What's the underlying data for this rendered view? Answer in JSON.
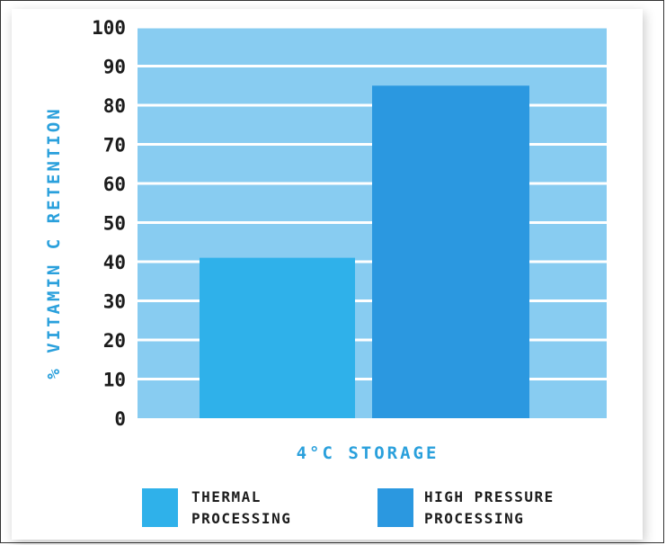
{
  "chart_data": {
    "type": "bar",
    "categories": [
      "4°C STORAGE"
    ],
    "series": [
      {
        "name": "THERMAL PROCESSING",
        "values": [
          41
        ],
        "color": "#2fb1ea"
      },
      {
        "name": "HIGH PRESSURE PROCESSING",
        "values": [
          85
        ],
        "color": "#2b98e0"
      }
    ],
    "xlabel": "4°C STORAGE",
    "ylabel": "% VITAMIN C RETENTION",
    "yticks": [
      0,
      10,
      20,
      30,
      40,
      50,
      60,
      70,
      80,
      90,
      100
    ],
    "ylim": [
      0,
      100
    ],
    "grid": true,
    "legend": {
      "position": "bottom",
      "items": [
        {
          "line1": "THERMAL",
          "line2": "PROCESSING"
        },
        {
          "line1": "HIGH PRESSURE",
          "line2": "PROCESSING"
        }
      ]
    },
    "colors": {
      "plot_background": "#88ccf1",
      "grid_line": "#ffffff",
      "axis_text": "#2aa0dc"
    }
  }
}
